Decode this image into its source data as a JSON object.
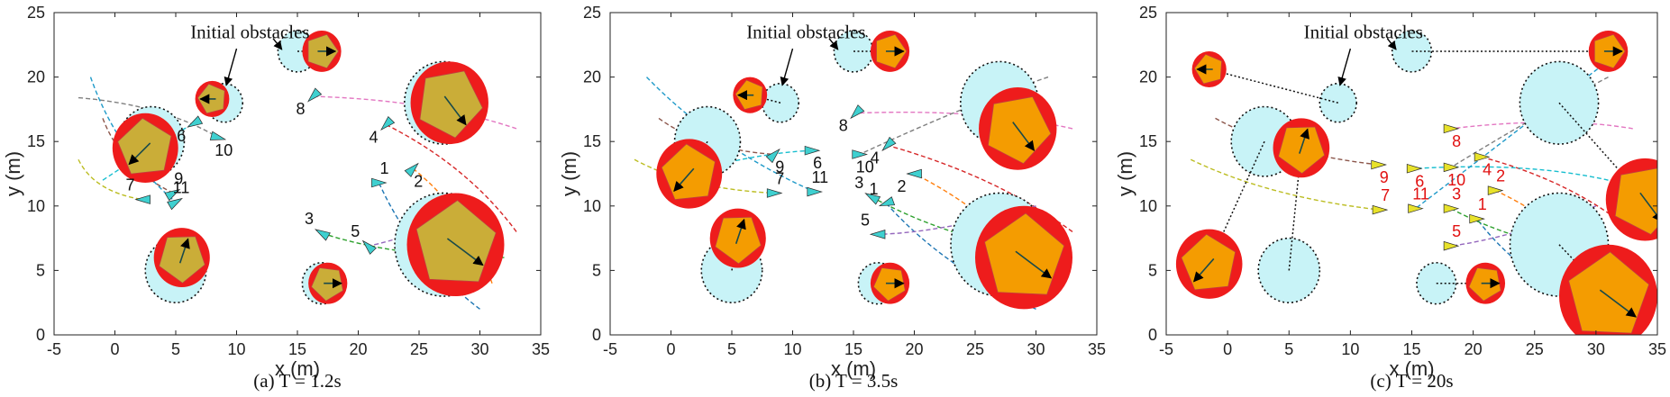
{
  "chart_data": [
    {
      "type": "scatter",
      "caption": "(a) T = 1.2s",
      "xlabel": "x (m)",
      "ylabel": "y (m)",
      "xlim": [
        -5,
        35
      ],
      "ylim": [
        0,
        25
      ],
      "xticks": [
        "-5",
        "0",
        "5",
        "10",
        "15",
        "20",
        "25",
        "30",
        "35"
      ],
      "yticks": [
        "0",
        "5",
        "10",
        "15",
        "20",
        "25"
      ],
      "annotation": "Initial obstacles",
      "agent_color": "#3fd0d0",
      "agent_label_color": "#111111",
      "initial_obstacles": [
        {
          "x": 15.0,
          "y": 22.0,
          "r": 1.6
        },
        {
          "x": 9.0,
          "y": 18.0,
          "r": 1.5
        },
        {
          "x": 27.0,
          "y": 18.0,
          "r": 3.2
        },
        {
          "x": 3.0,
          "y": 15.0,
          "r": 2.7
        },
        {
          "x": 5.0,
          "y": 5.0,
          "r": 2.5
        },
        {
          "x": 27.0,
          "y": 7.0,
          "r": 4.0
        },
        {
          "x": 17.0,
          "y": 4.0,
          "r": 1.6
        }
      ],
      "obstacles": [
        {
          "x": 17.0,
          "y": 22.0,
          "r": 1.6,
          "dx": 1.0,
          "dy": 0.0
        },
        {
          "x": 8.0,
          "y": 18.3,
          "r": 1.4,
          "dx": -0.8,
          "dy": 0.0
        },
        {
          "x": 27.5,
          "y": 18.0,
          "r": 3.2,
          "dx": 0.6,
          "dy": -0.8
        },
        {
          "x": 2.5,
          "y": 14.5,
          "r": 2.7,
          "dx": -0.8,
          "dy": -0.8
        },
        {
          "x": 5.5,
          "y": 6.0,
          "r": 2.3,
          "dx": 0.2,
          "dy": 0.6
        },
        {
          "x": 28.0,
          "y": 7.0,
          "r": 4.0,
          "dx": 0.8,
          "dy": -0.6
        },
        {
          "x": 17.5,
          "y": 4.0,
          "r": 1.6,
          "dx": 0.8,
          "dy": 0.0
        }
      ],
      "agents": [
        {
          "label": "1",
          "x": 21.7,
          "y": 11.8,
          "dir": 0
        },
        {
          "label": "2",
          "x": 24.5,
          "y": 12.9,
          "dir": 45
        },
        {
          "label": "3",
          "x": 17.0,
          "y": 7.9,
          "dir": 150
        },
        {
          "label": "4",
          "x": 22.3,
          "y": 16.3,
          "dir": 225
        },
        {
          "label": "5",
          "x": 20.8,
          "y": 6.9,
          "dir": 135
        },
        {
          "label": "6",
          "x": 6.5,
          "y": 16.4,
          "dir": 210
        },
        {
          "label": "7",
          "x": 2.3,
          "y": 10.5,
          "dir": 180
        },
        {
          "label": "8",
          "x": 16.3,
          "y": 18.5,
          "dir": 225
        },
        {
          "label": "9",
          "x": 4.8,
          "y": 11.0,
          "dir": 30
        },
        {
          "label": "10",
          "x": 8.5,
          "y": 15.3,
          "dir": 345
        },
        {
          "label": "11",
          "x": 5.0,
          "y": 10.3,
          "dir": 30
        }
      ]
    },
    {
      "type": "scatter",
      "caption": "(b) T = 3.5s",
      "xlabel": "x (m)",
      "ylabel": "y (m)",
      "xlim": [
        -5,
        35
      ],
      "ylim": [
        0,
        25
      ],
      "xticks": [
        "-5",
        "0",
        "5",
        "10",
        "15",
        "20",
        "25",
        "30",
        "35"
      ],
      "yticks": [
        "0",
        "5",
        "10",
        "15",
        "20",
        "25"
      ],
      "annotation": "Initial obstacles",
      "agent_color": "#3fd0d0",
      "agent_label_color": "#111111",
      "initial_obstacles": [
        {
          "x": 15.0,
          "y": 22.0,
          "r": 1.6
        },
        {
          "x": 9.0,
          "y": 18.0,
          "r": 1.5
        },
        {
          "x": 27.0,
          "y": 18.0,
          "r": 3.2
        },
        {
          "x": 3.0,
          "y": 15.0,
          "r": 2.7
        },
        {
          "x": 5.0,
          "y": 5.0,
          "r": 2.5
        },
        {
          "x": 27.0,
          "y": 7.0,
          "r": 4.0
        },
        {
          "x": 17.0,
          "y": 4.0,
          "r": 1.6
        }
      ],
      "obstacles": [
        {
          "x": 18.0,
          "y": 22.0,
          "r": 1.6,
          "dx": 1.0,
          "dy": 0.0
        },
        {
          "x": 6.5,
          "y": 18.6,
          "r": 1.4,
          "dx": -0.8,
          "dy": 0.0
        },
        {
          "x": 28.5,
          "y": 16.0,
          "r": 3.2,
          "dx": 0.6,
          "dy": -0.8
        },
        {
          "x": 1.5,
          "y": 12.5,
          "r": 2.7,
          "dx": -0.7,
          "dy": -0.8
        },
        {
          "x": 5.5,
          "y": 7.5,
          "r": 2.3,
          "dx": 0.2,
          "dy": 0.6
        },
        {
          "x": 29.0,
          "y": 6.0,
          "r": 4.0,
          "dx": 0.8,
          "dy": -0.6
        },
        {
          "x": 18.0,
          "y": 4.0,
          "r": 1.6,
          "dx": 0.8,
          "dy": 0.0
        }
      ],
      "agents": [
        {
          "label": "1",
          "x": 17.7,
          "y": 10.2,
          "dir": 200
        },
        {
          "label": "2",
          "x": 20.0,
          "y": 12.5,
          "dir": 180
        },
        {
          "label": "3",
          "x": 16.5,
          "y": 10.7,
          "dir": 150
        },
        {
          "label": "4",
          "x": 17.8,
          "y": 14.7,
          "dir": 225
        },
        {
          "label": "5",
          "x": 17.0,
          "y": 7.8,
          "dir": 180
        },
        {
          "label": "6",
          "x": 11.6,
          "y": 14.3,
          "dir": 0
        },
        {
          "label": "7",
          "x": 8.5,
          "y": 11.0,
          "dir": 0
        },
        {
          "label": "8",
          "x": 15.2,
          "y": 17.2,
          "dir": 225
        },
        {
          "label": "9",
          "x": 8.5,
          "y": 14.0,
          "dir": 45
        },
        {
          "label": "10",
          "x": 15.5,
          "y": 14.0,
          "dir": 0
        },
        {
          "label": "11",
          "x": 11.8,
          "y": 11.1,
          "dir": 0
        }
      ]
    },
    {
      "type": "scatter",
      "caption": "(c) T = 20s",
      "xlabel": "x (m)",
      "ylabel": "y (m)",
      "xlim": [
        -5,
        35
      ],
      "ylim": [
        0,
        25
      ],
      "xticks": [
        "-5",
        "0",
        "5",
        "10",
        "15",
        "20",
        "25",
        "30",
        "35"
      ],
      "yticks": [
        "0",
        "5",
        "10",
        "15",
        "20",
        "25"
      ],
      "annotation": "Initial obstacles",
      "agent_color": "#e8e22a",
      "agent_label_color": "#e11111",
      "initial_obstacles": [
        {
          "x": 15.0,
          "y": 22.0,
          "r": 1.6
        },
        {
          "x": 9.0,
          "y": 18.0,
          "r": 1.5
        },
        {
          "x": 27.0,
          "y": 18.0,
          "r": 3.2
        },
        {
          "x": 3.0,
          "y": 15.0,
          "r": 2.7
        },
        {
          "x": 5.0,
          "y": 5.0,
          "r": 2.5
        },
        {
          "x": 27.0,
          "y": 7.0,
          "r": 4.0
        },
        {
          "x": 17.0,
          "y": 4.0,
          "r": 1.6
        }
      ],
      "obstacles": [
        {
          "x": 31.0,
          "y": 22.0,
          "r": 1.6,
          "dx": 1.0,
          "dy": 0.0
        },
        {
          "x": -1.5,
          "y": 20.6,
          "r": 1.4,
          "dx": -0.8,
          "dy": 0.0
        },
        {
          "x": 34.0,
          "y": 10.5,
          "r": 3.2,
          "dx": 0.6,
          "dy": -0.8
        },
        {
          "x": -1.5,
          "y": 5.5,
          "r": 2.7,
          "dx": -0.7,
          "dy": -0.8
        },
        {
          "x": 6.0,
          "y": 14.5,
          "r": 2.3,
          "dx": 0.2,
          "dy": 0.6
        },
        {
          "x": 31.0,
          "y": 3.0,
          "r": 4.0,
          "dx": 0.8,
          "dy": -0.6
        },
        {
          "x": 21.0,
          "y": 4.0,
          "r": 1.6,
          "dx": 0.8,
          "dy": 0.0
        }
      ],
      "agents": [
        {
          "label": "1",
          "x": 20.3,
          "y": 9.0,
          "dir": 0
        },
        {
          "label": "2",
          "x": 21.8,
          "y": 11.2,
          "dir": 0
        },
        {
          "label": "3",
          "x": 18.2,
          "y": 9.8,
          "dir": 0
        },
        {
          "label": "4",
          "x": 20.7,
          "y": 13.8,
          "dir": 0
        },
        {
          "label": "5",
          "x": 18.2,
          "y": 6.9,
          "dir": 0
        },
        {
          "label": "6",
          "x": 15.2,
          "y": 12.9,
          "dir": 0
        },
        {
          "label": "7",
          "x": 12.4,
          "y": 9.7,
          "dir": 0
        },
        {
          "label": "8",
          "x": 18.2,
          "y": 16.0,
          "dir": 0
        },
        {
          "label": "9",
          "x": 12.3,
          "y": 13.2,
          "dir": 0
        },
        {
          "label": "10",
          "x": 18.2,
          "y": 13.0,
          "dir": 0
        },
        {
          "label": "11",
          "x": 15.3,
          "y": 9.8,
          "dir": 0
        }
      ]
    }
  ]
}
